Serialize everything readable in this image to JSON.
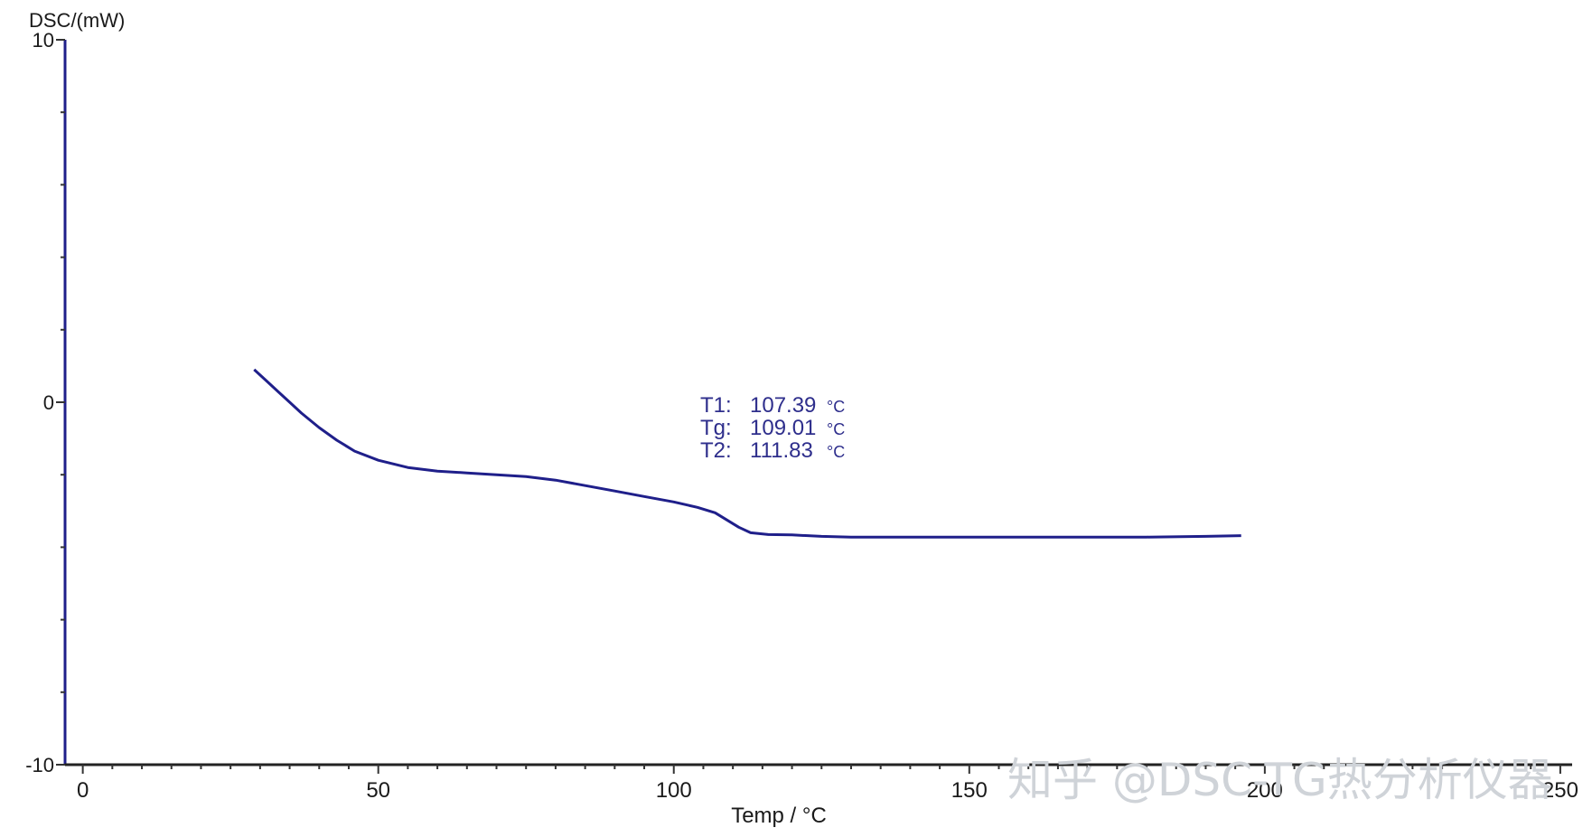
{
  "chart_data": {
    "type": "line",
    "ylabel": "DSC/(mW)",
    "xlabel": "Temp / °C",
    "xlim": [
      -3,
      252
    ],
    "ylim": [
      -10,
      10
    ],
    "x_ticks": [
      0,
      50,
      100,
      150,
      200,
      250
    ],
    "x_tick_labels": [
      "0",
      "50",
      "100",
      "150",
      "200",
      "250"
    ],
    "y_ticks": [
      -10,
      0,
      10
    ],
    "y_tick_labels": [
      "-10",
      "0",
      "10"
    ],
    "grid": false,
    "series": [
      {
        "color": "#1f1f8a",
        "x": [
          29,
          31,
          33,
          35,
          37,
          40,
          43,
          46,
          50,
          55,
          60,
          65,
          70,
          75,
          80,
          85,
          90,
          95,
          100,
          104,
          107,
          109,
          111,
          113,
          116,
          120,
          125,
          130,
          140,
          150,
          160,
          170,
          180,
          190,
          196
        ],
        "y": [
          0.9,
          0.6,
          0.3,
          0.0,
          -0.3,
          -0.7,
          -1.05,
          -1.35,
          -1.6,
          -1.8,
          -1.9,
          -1.95,
          -2.0,
          -2.05,
          -2.15,
          -2.3,
          -2.45,
          -2.6,
          -2.75,
          -2.9,
          -3.05,
          -3.25,
          -3.45,
          -3.6,
          -3.65,
          -3.66,
          -3.7,
          -3.72,
          -3.72,
          -3.72,
          -3.72,
          -3.72,
          -3.72,
          -3.7,
          -3.68
        ]
      }
    ],
    "annotations": [
      {
        "label": "T1:",
        "value": "107.39",
        "unit": "°C"
      },
      {
        "label": "Tg:",
        "value": "109.01",
        "unit": "°C"
      },
      {
        "label": "T2:",
        "value": "111.83",
        "unit": "°C"
      }
    ],
    "watermark": "知乎 @DSC-TG热分析仪器"
  }
}
